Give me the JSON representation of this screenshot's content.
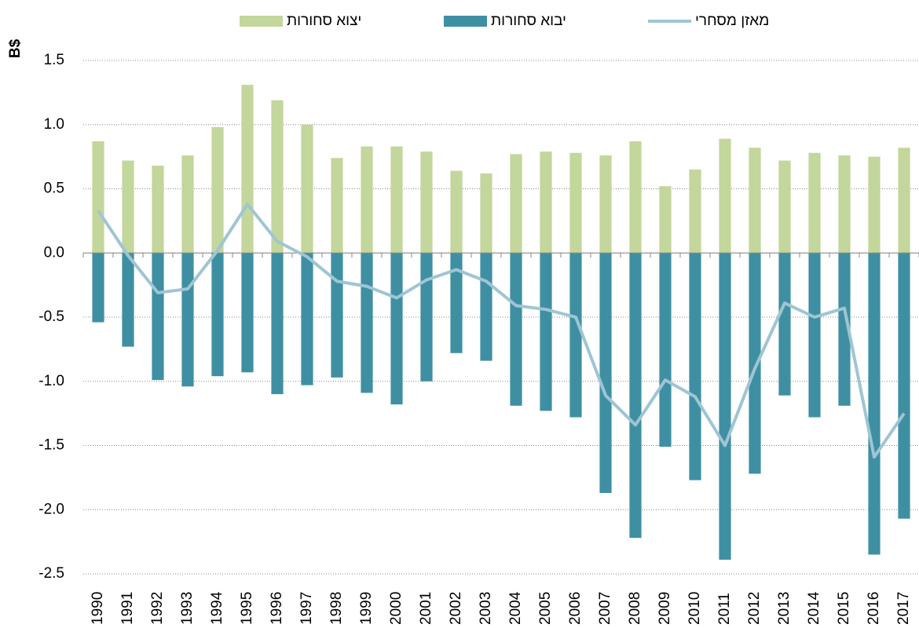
{
  "chart_data": {
    "type": "bar",
    "y_label": "B$",
    "categories": [
      "1990",
      "1991",
      "1992",
      "1993",
      "1994",
      "1995",
      "1996",
      "1997",
      "1998",
      "1999",
      "2000",
      "2001",
      "2002",
      "2003",
      "2004",
      "2005",
      "2006",
      "2007",
      "2008",
      "2009",
      "2010",
      "2011",
      "2012",
      "2013",
      "2014",
      "2015",
      "2016",
      "2017"
    ],
    "series": [
      {
        "name": "יצוא סחורות",
        "type": "bar",
        "color": "#c3d69b",
        "values": [
          0.87,
          0.72,
          0.68,
          0.76,
          0.98,
          1.31,
          1.19,
          1.0,
          0.74,
          0.83,
          0.83,
          0.79,
          0.64,
          0.62,
          0.77,
          0.79,
          0.78,
          0.76,
          0.87,
          0.52,
          0.65,
          0.89,
          0.82,
          0.72,
          0.78,
          0.76,
          0.75,
          0.82
        ]
      },
      {
        "name": "יבוא סחורות",
        "type": "bar",
        "color": "#3f8fa3",
        "values": [
          -0.54,
          -0.73,
          -0.99,
          -1.04,
          -0.96,
          -0.93,
          -1.1,
          -1.03,
          -0.97,
          -1.09,
          -1.18,
          -1.0,
          -0.78,
          -0.84,
          -1.19,
          -1.23,
          -1.28,
          -1.87,
          -2.22,
          -1.51,
          -1.77,
          -2.39,
          -1.72,
          -1.11,
          -1.28,
          -1.19,
          -2.35,
          -2.07
        ]
      },
      {
        "name": "מאזן מסחרי",
        "type": "line",
        "color": "#9fc5d3",
        "values": [
          0.33,
          -0.02,
          -0.31,
          -0.28,
          0.02,
          0.38,
          0.09,
          -0.03,
          -0.22,
          -0.26,
          -0.35,
          -0.21,
          -0.13,
          -0.22,
          -0.41,
          -0.44,
          -0.5,
          -1.11,
          -1.34,
          -0.99,
          -1.12,
          -1.5,
          -0.9,
          -0.39,
          -0.5,
          -0.43,
          -1.59,
          -1.25
        ]
      }
    ],
    "ylim": [
      -2.5,
      1.5
    ],
    "yticks": [
      1.5,
      {
        "value": 1,
        "label": "1.0"
      },
      0.5,
      {
        "value": 0,
        "label": "0.0"
      },
      -0.5,
      {
        "value": -1,
        "label": "-1.0"
      },
      -1.5,
      {
        "value": -2,
        "label": "-2.0"
      },
      -2.5
    ],
    "grid": true,
    "legend": "top"
  }
}
